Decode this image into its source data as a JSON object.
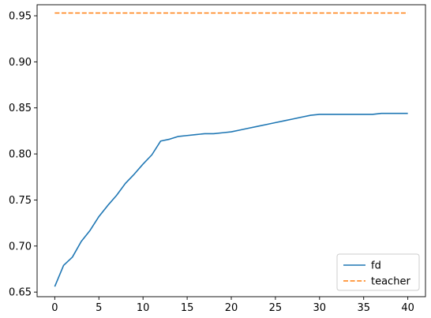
{
  "chart_data": {
    "type": "line",
    "title": "",
    "xlabel": "",
    "ylabel": "",
    "xlim": [
      -2,
      42
    ],
    "ylim": [
      0.645,
      0.962
    ],
    "xticks": [
      0,
      5,
      10,
      15,
      20,
      25,
      30,
      35,
      40
    ],
    "xtick_labels": [
      "0",
      "5",
      "10",
      "15",
      "20",
      "25",
      "30",
      "35",
      "40"
    ],
    "yticks": [
      0.65,
      0.7,
      0.75,
      0.8,
      0.85,
      0.9,
      0.95
    ],
    "ytick_labels": [
      "0.65",
      "0.70",
      "0.75",
      "0.80",
      "0.85",
      "0.90",
      "0.95"
    ],
    "grid": false,
    "legend_position": "bottom-right",
    "series": [
      {
        "name": "fd",
        "color": "#1f77b4",
        "dash": "solid",
        "x": [
          0,
          1,
          2,
          3,
          4,
          5,
          6,
          7,
          8,
          9,
          10,
          11,
          12,
          13,
          14,
          15,
          16,
          17,
          18,
          19,
          20,
          21,
          22,
          23,
          24,
          25,
          26,
          27,
          28,
          29,
          30,
          31,
          32,
          33,
          34,
          35,
          36,
          37,
          38,
          39,
          40
        ],
        "y": [
          0.656,
          0.679,
          0.688,
          0.705,
          0.717,
          0.732,
          0.744,
          0.755,
          0.768,
          0.778,
          0.789,
          0.799,
          0.814,
          0.816,
          0.819,
          0.82,
          0.821,
          0.822,
          0.822,
          0.823,
          0.824,
          0.826,
          0.828,
          0.83,
          0.832,
          0.834,
          0.836,
          0.838,
          0.84,
          0.842,
          0.843,
          0.843,
          0.843,
          0.843,
          0.843,
          0.843,
          0.843,
          0.844,
          0.844,
          0.844,
          0.844
        ]
      },
      {
        "name": "teacher",
        "color": "#ff7f0e",
        "dash": "dashed",
        "x": [
          0,
          40
        ],
        "y": [
          0.953,
          0.953
        ]
      }
    ]
  }
}
